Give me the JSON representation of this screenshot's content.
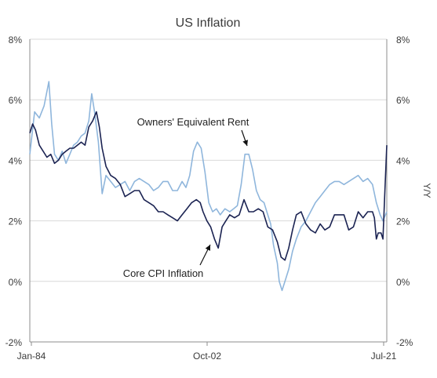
{
  "chart_data": {
    "type": "line",
    "title": "US Inflation",
    "xlabel": "",
    "ylabel_left": "",
    "ylabel_right": "Y/Y",
    "ylim": [
      -2,
      8
    ],
    "y_ticks": [
      "-2%",
      "0%",
      "2%",
      "4%",
      "6%",
      "8%"
    ],
    "x_ticks": [
      "Jan-84",
      "Oct-02",
      "Jul-21"
    ],
    "x_range": [
      1984.0,
      2021.5
    ],
    "grid": true,
    "colors": {
      "core_cpi": "#1b2352",
      "oer": "#8fb6dc",
      "grid": "#d9d9d9",
      "axis": "#8c8c8c",
      "text": "#3a3a3a"
    },
    "series": [
      {
        "name": "Core CPI Inflation",
        "key": "core_cpi",
        "x": [
          1984.0,
          1984.3,
          1984.6,
          1985.0,
          1985.4,
          1985.8,
          1986.2,
          1986.6,
          1987.0,
          1987.4,
          1987.8,
          1988.2,
          1988.6,
          1989.0,
          1989.4,
          1989.8,
          1990.2,
          1990.6,
          1991.0,
          1991.3,
          1991.6,
          1992.0,
          1992.5,
          1993.0,
          1993.5,
          1994.0,
          1994.5,
          1995.0,
          1995.5,
          1996.0,
          1996.5,
          1997.0,
          1997.5,
          1998.0,
          1998.5,
          1999.0,
          1999.5,
          2000.0,
          2000.5,
          2001.0,
          2001.5,
          2001.9,
          2002.2,
          2002.6,
          2003.0,
          2003.4,
          2003.8,
          2004.2,
          2004.6,
          2005.0,
          2005.5,
          2006.0,
          2006.5,
          2007.0,
          2007.5,
          2008.0,
          2008.5,
          2009.0,
          2009.5,
          2010.0,
          2010.4,
          2010.8,
          2011.2,
          2011.6,
          2012.0,
          2012.5,
          2013.0,
          2013.5,
          2014.0,
          2014.5,
          2015.0,
          2015.5,
          2016.0,
          2016.5,
          2017.0,
          2017.5,
          2018.0,
          2018.5,
          2019.0,
          2019.5,
          2020.0,
          2020.2,
          2020.4,
          2020.6,
          2020.9,
          2021.1,
          2021.3,
          2021.5
        ],
        "values": [
          4.9,
          5.2,
          5.0,
          4.5,
          4.3,
          4.1,
          4.2,
          3.9,
          4.0,
          4.2,
          4.3,
          4.4,
          4.4,
          4.5,
          4.6,
          4.5,
          5.1,
          5.3,
          5.6,
          5.1,
          4.4,
          3.8,
          3.5,
          3.4,
          3.2,
          2.8,
          2.9,
          3.0,
          3.0,
          2.7,
          2.6,
          2.5,
          2.3,
          2.3,
          2.2,
          2.1,
          2.0,
          2.2,
          2.4,
          2.6,
          2.7,
          2.6,
          2.3,
          2.0,
          1.8,
          1.4,
          1.1,
          1.8,
          2.0,
          2.2,
          2.1,
          2.2,
          2.7,
          2.3,
          2.3,
          2.4,
          2.3,
          1.8,
          1.7,
          1.3,
          0.8,
          0.7,
          1.1,
          1.7,
          2.2,
          2.3,
          1.9,
          1.7,
          1.6,
          1.9,
          1.7,
          1.8,
          2.2,
          2.2,
          2.2,
          1.7,
          1.8,
          2.3,
          2.1,
          2.3,
          2.3,
          2.1,
          1.4,
          1.6,
          1.6,
          1.4,
          3.0,
          4.5
        ]
      },
      {
        "name": "Owners' Equivalent Rent",
        "key": "oer",
        "x": [
          1984.0,
          1984.5,
          1985.0,
          1985.5,
          1986.0,
          1986.3,
          1986.6,
          1987.0,
          1987.4,
          1987.8,
          1988.2,
          1988.6,
          1989.0,
          1989.4,
          1989.8,
          1990.2,
          1990.5,
          1990.8,
          1991.2,
          1991.6,
          1992.0,
          1992.5,
          1993.0,
          1993.5,
          1994.0,
          1994.5,
          1995.0,
          1995.5,
          1996.0,
          1996.5,
          1997.0,
          1997.5,
          1998.0,
          1998.5,
          1999.0,
          1999.5,
          2000.0,
          2000.4,
          2000.8,
          2001.2,
          2001.6,
          2002.0,
          2002.4,
          2002.8,
          2003.2,
          2003.6,
          2004.0,
          2004.5,
          2005.0,
          2005.4,
          2005.8,
          2006.2,
          2006.6,
          2007.0,
          2007.4,
          2007.8,
          2008.2,
          2008.6,
          2009.0,
          2009.3,
          2009.6,
          2010.0,
          2010.2,
          2010.5,
          2010.8,
          2011.2,
          2011.6,
          2012.0,
          2012.5,
          2013.0,
          2013.5,
          2014.0,
          2014.5,
          2015.0,
          2015.5,
          2016.0,
          2016.5,
          2017.0,
          2017.5,
          2018.0,
          2018.5,
          2019.0,
          2019.5,
          2020.0,
          2020.4,
          2020.8,
          2021.1,
          2021.5
        ],
        "values": [
          4.2,
          5.6,
          5.4,
          5.8,
          6.6,
          5.2,
          4.2,
          4.0,
          4.3,
          3.9,
          4.2,
          4.5,
          4.6,
          4.8,
          4.9,
          5.3,
          6.2,
          5.6,
          4.6,
          2.9,
          3.5,
          3.3,
          3.1,
          3.2,
          3.3,
          3.0,
          3.3,
          3.4,
          3.3,
          3.2,
          3.0,
          3.1,
          3.3,
          3.3,
          3.0,
          3.0,
          3.3,
          3.1,
          3.5,
          4.3,
          4.6,
          4.4,
          3.6,
          2.6,
          2.3,
          2.4,
          2.2,
          2.4,
          2.3,
          2.4,
          2.5,
          3.2,
          4.2,
          4.2,
          3.7,
          3.0,
          2.7,
          2.6,
          2.2,
          1.9,
          1.2,
          0.6,
          0.0,
          -0.3,
          0.0,
          0.4,
          1.0,
          1.4,
          1.8,
          2.0,
          2.3,
          2.6,
          2.8,
          3.0,
          3.2,
          3.3,
          3.3,
          3.2,
          3.3,
          3.4,
          3.5,
          3.3,
          3.4,
          3.2,
          2.6,
          2.2,
          2.0,
          2.3
        ]
      }
    ],
    "annotations": [
      {
        "text": "Owners' Equivalent Rent",
        "series": "oer",
        "point_x": 2004.6,
        "point_y": 4.4
      },
      {
        "text": "Core CPI Inflation",
        "series": "core_cpi",
        "point_x": 2003.2,
        "point_y": 1.2
      }
    ]
  }
}
